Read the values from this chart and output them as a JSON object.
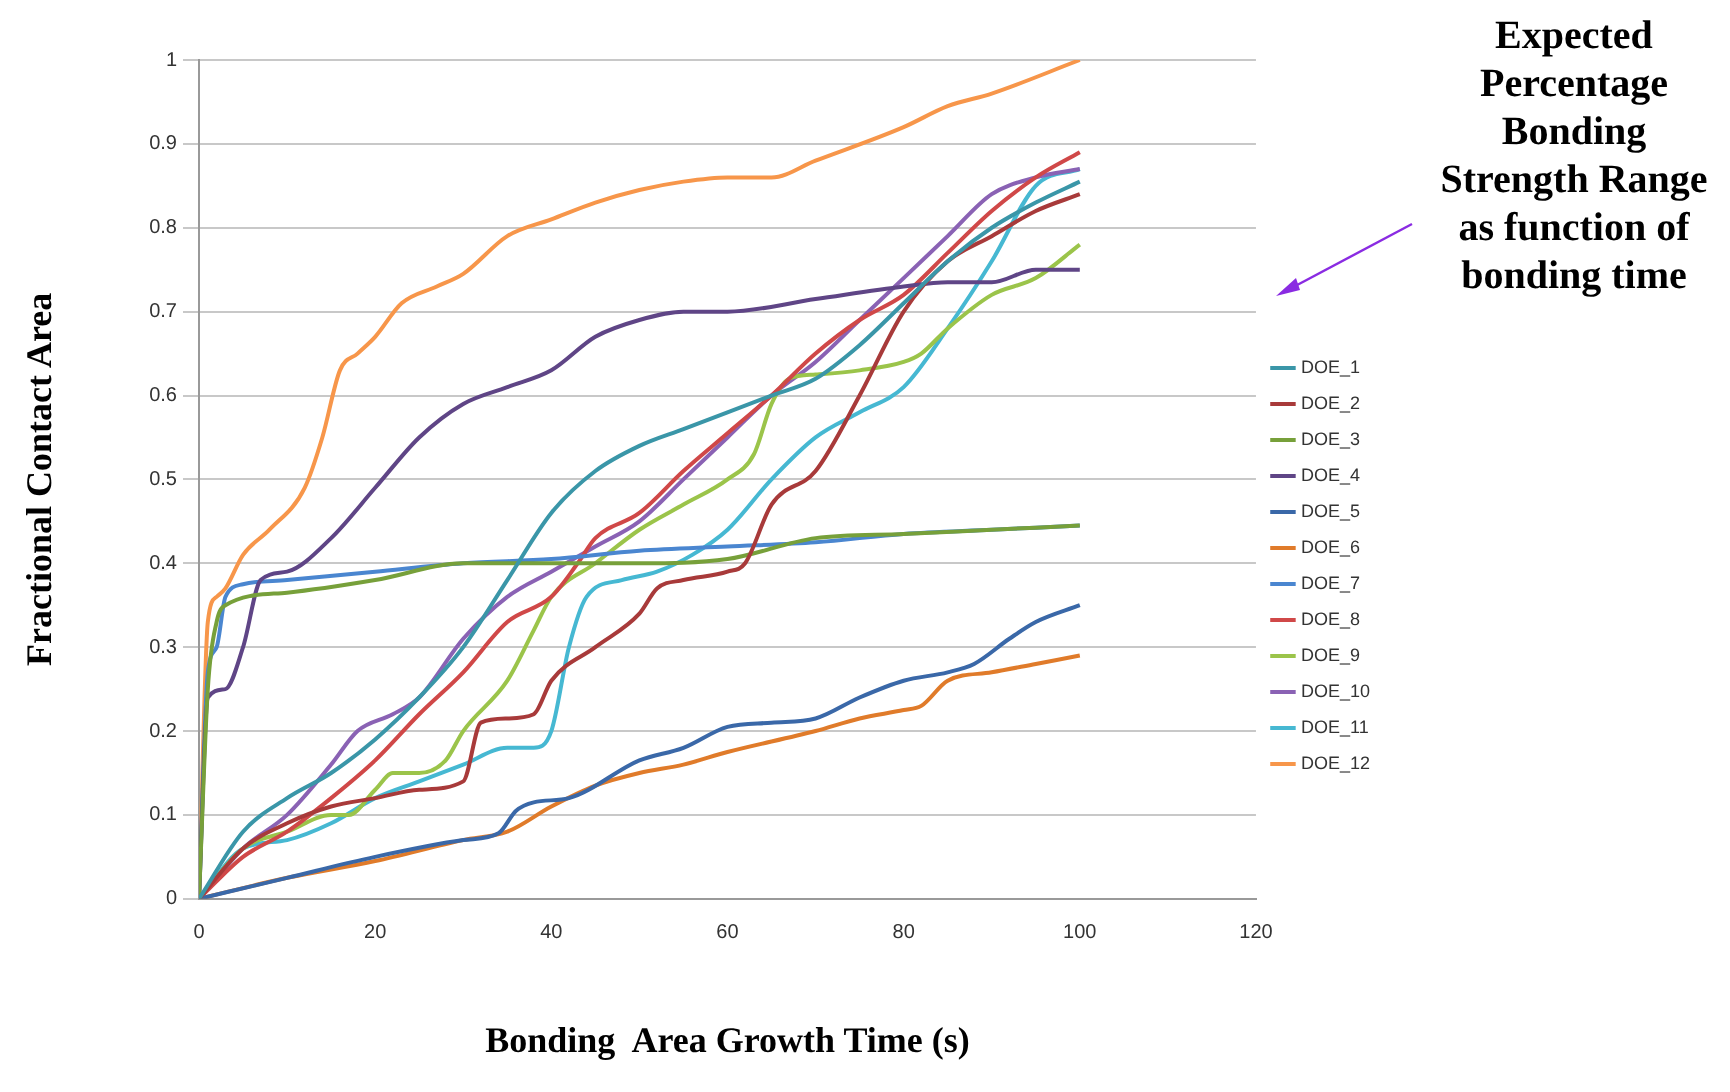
{
  "chart_data": {
    "type": "line",
    "xlabel": "Bonding  Area Growth Time (s)",
    "ylabel": "Fractional Contact Area",
    "annotations": [
      "Expected Percentage Bonding Strength Range as function of bonding time"
    ],
    "xlim": [
      0,
      120
    ],
    "xticks": [
      0,
      20,
      40,
      60,
      80,
      100,
      120
    ],
    "ylim": [
      0,
      1
    ],
    "yticks": [
      0,
      0.1,
      0.2,
      0.3,
      0.4,
      0.5,
      0.6,
      0.7,
      0.8,
      0.9,
      1
    ],
    "grid": "y",
    "legend": "right",
    "marker": "none",
    "line_style": "solid",
    "series": [
      {
        "name": "DOE_1",
        "color": "#3a96a8",
        "x": [
          0,
          5,
          10,
          15,
          20,
          25,
          30,
          35,
          40,
          45,
          50,
          55,
          60,
          65,
          70,
          75,
          80,
          85,
          90,
          95,
          100
        ],
        "values": [
          0,
          0.08,
          0.12,
          0.15,
          0.19,
          0.24,
          0.3,
          0.38,
          0.46,
          0.51,
          0.54,
          0.56,
          0.58,
          0.6,
          0.62,
          0.66,
          0.71,
          0.76,
          0.8,
          0.83,
          0.855
        ]
      },
      {
        "name": "DOE_2",
        "color": "#a83a3a",
        "x": [
          0,
          5,
          10,
          15,
          20,
          25,
          30,
          32,
          35,
          38,
          40,
          45,
          50,
          52,
          55,
          60,
          62,
          65,
          70,
          75,
          80,
          85,
          90,
          95,
          100
        ],
        "values": [
          0,
          0.06,
          0.09,
          0.11,
          0.12,
          0.13,
          0.14,
          0.21,
          0.215,
          0.22,
          0.26,
          0.3,
          0.34,
          0.37,
          0.38,
          0.39,
          0.4,
          0.47,
          0.51,
          0.6,
          0.7,
          0.76,
          0.79,
          0.82,
          0.84
        ]
      },
      {
        "name": "DOE_3",
        "color": "#77a03a",
        "x": [
          0,
          1,
          2,
          3,
          10,
          20,
          30,
          40,
          50,
          60,
          70,
          80,
          90,
          100
        ],
        "values": [
          0,
          0.25,
          0.33,
          0.35,
          0.365,
          0.38,
          0.4,
          0.4,
          0.4,
          0.405,
          0.43,
          0.435,
          0.44,
          0.445
        ]
      },
      {
        "name": "DOE_4",
        "color": "#5f4586",
        "x": [
          0,
          1,
          3,
          5,
          7,
          10,
          15,
          20,
          25,
          30,
          35,
          40,
          45,
          50,
          55,
          60,
          70,
          80,
          85,
          90,
          95,
          100
        ],
        "values": [
          0,
          0.24,
          0.25,
          0.3,
          0.38,
          0.39,
          0.43,
          0.49,
          0.55,
          0.59,
          0.61,
          0.63,
          0.67,
          0.69,
          0.7,
          0.7,
          0.715,
          0.73,
          0.735,
          0.735,
          0.75,
          0.75
        ]
      },
      {
        "name": "DOE_5",
        "color": "#3a68a8",
        "x": [
          0,
          10,
          20,
          30,
          34,
          36,
          38,
          42,
          50,
          55,
          60,
          65,
          70,
          75,
          80,
          85,
          88,
          92,
          95,
          100
        ],
        "values": [
          0,
          0.025,
          0.05,
          0.07,
          0.078,
          0.105,
          0.115,
          0.12,
          0.165,
          0.18,
          0.205,
          0.21,
          0.215,
          0.24,
          0.26,
          0.27,
          0.28,
          0.31,
          0.33,
          0.35
        ]
      },
      {
        "name": "DOE_6",
        "color": "#e07b2a",
        "x": [
          0,
          10,
          20,
          30,
          35,
          40,
          45,
          50,
          55,
          60,
          70,
          75,
          80,
          82,
          85,
          90,
          95,
          100
        ],
        "values": [
          0,
          0.025,
          0.045,
          0.07,
          0.08,
          0.11,
          0.135,
          0.15,
          0.16,
          0.175,
          0.2,
          0.215,
          0.225,
          0.23,
          0.26,
          0.27,
          0.28,
          0.29
        ]
      },
      {
        "name": "DOE_7",
        "color": "#4a86d0",
        "x": [
          0,
          1,
          2,
          3,
          5,
          10,
          20,
          30,
          40,
          50,
          60,
          70,
          80,
          90,
          100
        ],
        "values": [
          0,
          0.27,
          0.3,
          0.36,
          0.375,
          0.38,
          0.39,
          0.4,
          0.405,
          0.415,
          0.42,
          0.425,
          0.435,
          0.44,
          0.445
        ]
      },
      {
        "name": "DOE_8",
        "color": "#d04848",
        "x": [
          0,
          5,
          10,
          15,
          20,
          25,
          30,
          35,
          40,
          43,
          45,
          50,
          55,
          60,
          65,
          70,
          75,
          80,
          85,
          90,
          95,
          100
        ],
        "values": [
          0,
          0.05,
          0.08,
          0.12,
          0.165,
          0.22,
          0.27,
          0.33,
          0.36,
          0.4,
          0.43,
          0.46,
          0.51,
          0.555,
          0.6,
          0.65,
          0.69,
          0.72,
          0.77,
          0.82,
          0.86,
          0.89
        ]
      },
      {
        "name": "DOE_9",
        "color": "#9bc44a",
        "x": [
          0,
          5,
          10,
          15,
          17,
          20,
          22,
          25,
          28,
          30,
          35,
          38,
          40,
          45,
          50,
          55,
          60,
          63,
          65,
          67,
          70,
          75,
          80,
          82,
          85,
          90,
          95,
          100
        ],
        "values": [
          0,
          0.06,
          0.08,
          0.1,
          0.1,
          0.13,
          0.15,
          0.15,
          0.165,
          0.2,
          0.26,
          0.32,
          0.36,
          0.4,
          0.44,
          0.47,
          0.5,
          0.53,
          0.59,
          0.62,
          0.625,
          0.63,
          0.64,
          0.65,
          0.68,
          0.72,
          0.74,
          0.78
        ]
      },
      {
        "name": "DOE_10",
        "color": "#8a62b4",
        "x": [
          0,
          5,
          10,
          15,
          18,
          22,
          25,
          30,
          35,
          40,
          45,
          50,
          55,
          60,
          65,
          70,
          75,
          80,
          85,
          90,
          95,
          100
        ],
        "values": [
          0,
          0.06,
          0.1,
          0.16,
          0.2,
          0.22,
          0.24,
          0.31,
          0.36,
          0.39,
          0.42,
          0.45,
          0.5,
          0.55,
          0.6,
          0.64,
          0.69,
          0.74,
          0.79,
          0.84,
          0.86,
          0.87
        ]
      },
      {
        "name": "DOE_11",
        "color": "#46b8d2",
        "x": [
          0,
          5,
          10,
          15,
          20,
          25,
          30,
          35,
          38,
          40,
          42,
          44,
          48,
          52,
          56,
          60,
          65,
          70,
          75,
          80,
          85,
          90,
          95,
          100
        ],
        "values": [
          0,
          0.06,
          0.07,
          0.09,
          0.12,
          0.14,
          0.16,
          0.18,
          0.18,
          0.2,
          0.3,
          0.36,
          0.38,
          0.39,
          0.41,
          0.44,
          0.5,
          0.55,
          0.58,
          0.61,
          0.68,
          0.76,
          0.85,
          0.87
        ]
      },
      {
        "name": "DOE_12",
        "color": "#f7964a",
        "x": [
          0,
          1,
          2,
          3,
          5,
          8,
          12,
          14,
          16,
          18,
          20,
          23,
          27,
          30,
          35,
          40,
          45,
          50,
          55,
          60,
          65,
          70,
          80,
          85,
          90,
          100
        ],
        "values": [
          0,
          0.33,
          0.36,
          0.37,
          0.41,
          0.44,
          0.49,
          0.55,
          0.63,
          0.65,
          0.67,
          0.71,
          0.73,
          0.745,
          0.79,
          0.81,
          0.83,
          0.845,
          0.855,
          0.86,
          0.86,
          0.88,
          0.92,
          0.945,
          0.96,
          1
        ]
      }
    ]
  }
}
